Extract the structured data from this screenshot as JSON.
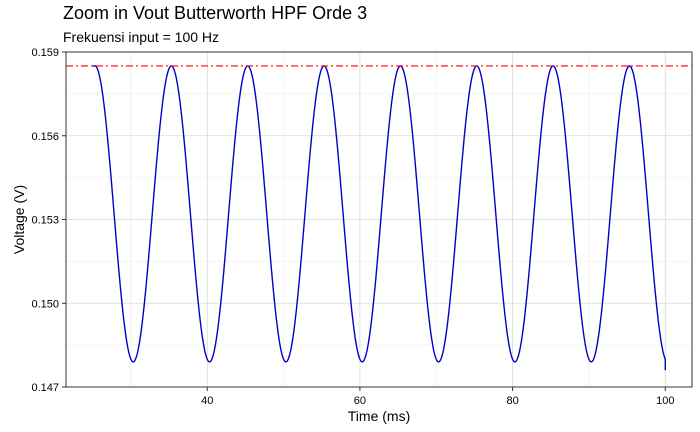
{
  "chart_data": {
    "type": "line",
    "title": "Zoom in Vout Butterworth HPF Orde 3",
    "subtitle": "Frekuensi input = 100 Hz",
    "xlabel": "Time (ms)",
    "ylabel": "Voltage (V)",
    "xlim": [
      21.5,
      103.5
    ],
    "ylim": [
      0.147,
      0.159
    ],
    "x_ticks": [
      40,
      60,
      80,
      100
    ],
    "y_ticks": [
      0.147,
      0.15,
      0.153,
      0.156,
      0.159
    ],
    "y_tick_labels": [
      "0.147",
      "0.150",
      "0.153",
      "0.156",
      "0.159"
    ],
    "x_tick_labels": [
      "40",
      "60",
      "80",
      "100"
    ],
    "grid": true,
    "series": [
      {
        "color": "#0000cc",
        "line_style": "solid",
        "waveform": {
          "shape": "sinusoid",
          "period_ms": 10,
          "first_peak_ms": 25.3,
          "peak_value": 0.1585,
          "trough_value": 0.1479,
          "x_start": 25.0,
          "x_end": 100.0,
          "end_value": 0.1476,
          "peaks": [
            [
              25.3,
              0.1585
            ],
            [
              35.3,
              0.1585
            ],
            [
              45.3,
              0.1585
            ],
            [
              55.3,
              0.1585
            ],
            [
              65.3,
              0.1585
            ],
            [
              75.3,
              0.1585
            ],
            [
              85.3,
              0.1585
            ],
            [
              95.3,
              0.1585
            ]
          ],
          "troughs": [
            [
              30.3,
              0.1479
            ],
            [
              40.3,
              0.1479
            ],
            [
              50.3,
              0.1479
            ],
            [
              60.3,
              0.1479
            ],
            [
              70.3,
              0.1479
            ],
            [
              80.3,
              0.1479
            ],
            [
              90.3,
              0.1479
            ]
          ]
        }
      },
      {
        "color": "#ff0000",
        "line_style": "dashdot",
        "hline": 0.1585,
        "x_range": [
          21.5,
          103.5
        ]
      }
    ]
  }
}
